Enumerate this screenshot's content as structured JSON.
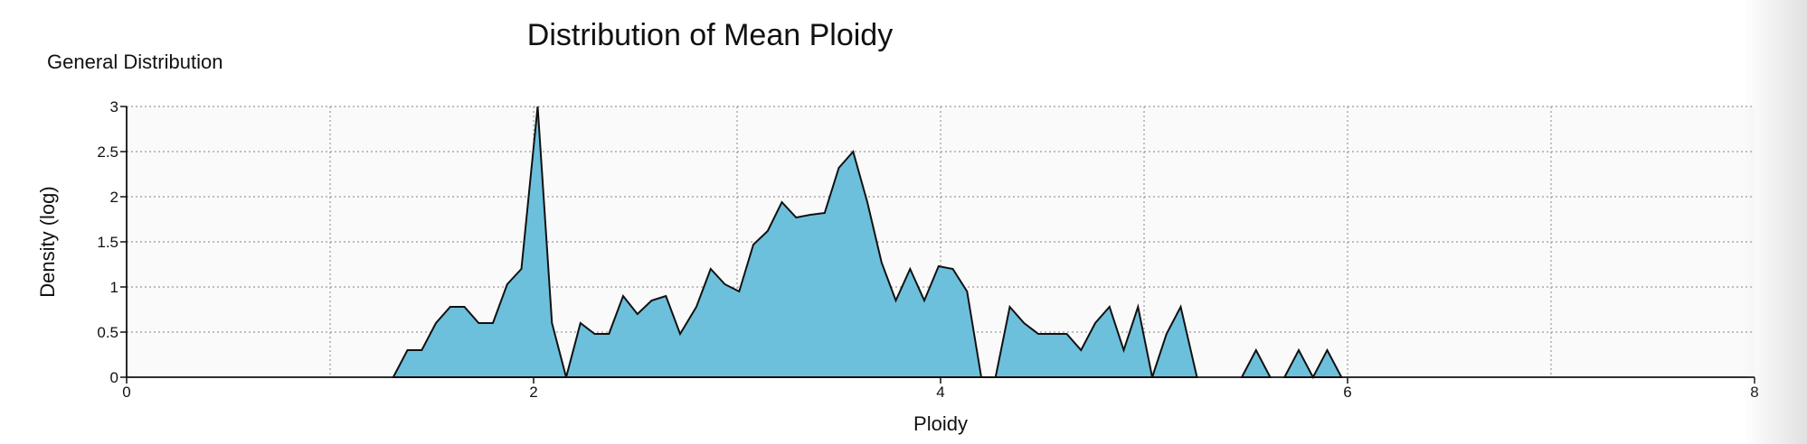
{
  "chart_data": {
    "type": "area",
    "title": "Distribution of Mean Ploidy",
    "subtitle": "General Distribution",
    "xlabel": "Ploidy",
    "ylabel": "Density (log)",
    "xlim": [
      0,
      8
    ],
    "ylim": [
      0,
      3
    ],
    "x_ticks": [
      "0",
      "2",
      "4",
      "6",
      "8"
    ],
    "y_ticks": [
      "0",
      "0.5",
      "1",
      "1.5",
      "2",
      "2.5",
      "3"
    ],
    "x_grid": [
      1,
      2,
      3,
      4,
      5,
      6,
      7
    ],
    "grid": true,
    "fill_color": "#6cc0dc",
    "line_color": "#111111",
    "plot_bg": "#fafafa",
    "segments": [
      {
        "x": [
          1.31,
          1.38,
          1.45,
          1.52,
          1.59,
          1.66,
          1.73,
          1.8,
          1.87,
          1.94,
          2.02,
          2.09,
          2.16
        ],
        "y": [
          0,
          0.3,
          0.3,
          0.6,
          0.78,
          0.78,
          0.6,
          0.6,
          1.03,
          1.2,
          3.0,
          0.6,
          0
        ]
      },
      {
        "x": [
          2.16,
          2.23,
          2.3,
          2.37,
          2.44,
          2.51,
          2.58,
          2.65,
          2.72,
          2.8,
          2.87,
          2.94,
          3.01,
          3.08,
          3.15,
          3.22,
          3.29,
          3.36,
          3.43,
          3.5,
          3.57,
          3.64,
          3.71,
          3.78,
          3.85,
          3.92,
          3.99,
          4.06,
          4.13,
          4.2,
          4.27
        ],
        "y": [
          0,
          0.6,
          0.48,
          0.48,
          0.9,
          0.7,
          0.85,
          0.9,
          0.48,
          0.78,
          1.2,
          1.03,
          0.95,
          1.47,
          1.62,
          1.94,
          1.77,
          1.8,
          1.82,
          2.32,
          2.5,
          1.94,
          1.27,
          0.85,
          1.2,
          0.85,
          1.23,
          1.2,
          0.95,
          0,
          0
        ]
      },
      {
        "x": [
          4.27,
          4.34,
          4.41,
          4.48,
          4.55,
          4.62,
          4.69,
          4.76,
          4.83,
          4.9,
          4.97,
          5.04
        ],
        "y": [
          0,
          0.78,
          0.6,
          0.48,
          0.48,
          0.48,
          0.3,
          0.6,
          0.78,
          0.3,
          0.78,
          0
        ]
      },
      {
        "x": [
          5.04,
          5.11,
          5.18,
          5.26
        ],
        "y": [
          0,
          0.48,
          0.78,
          0
        ]
      },
      {
        "x": [
          5.48,
          5.55,
          5.62
        ],
        "y": [
          0,
          0.3,
          0
        ]
      },
      {
        "x": [
          5.69,
          5.76,
          5.83,
          5.9,
          5.97
        ],
        "y": [
          0,
          0.3,
          0,
          0.3,
          0
        ]
      }
    ]
  }
}
